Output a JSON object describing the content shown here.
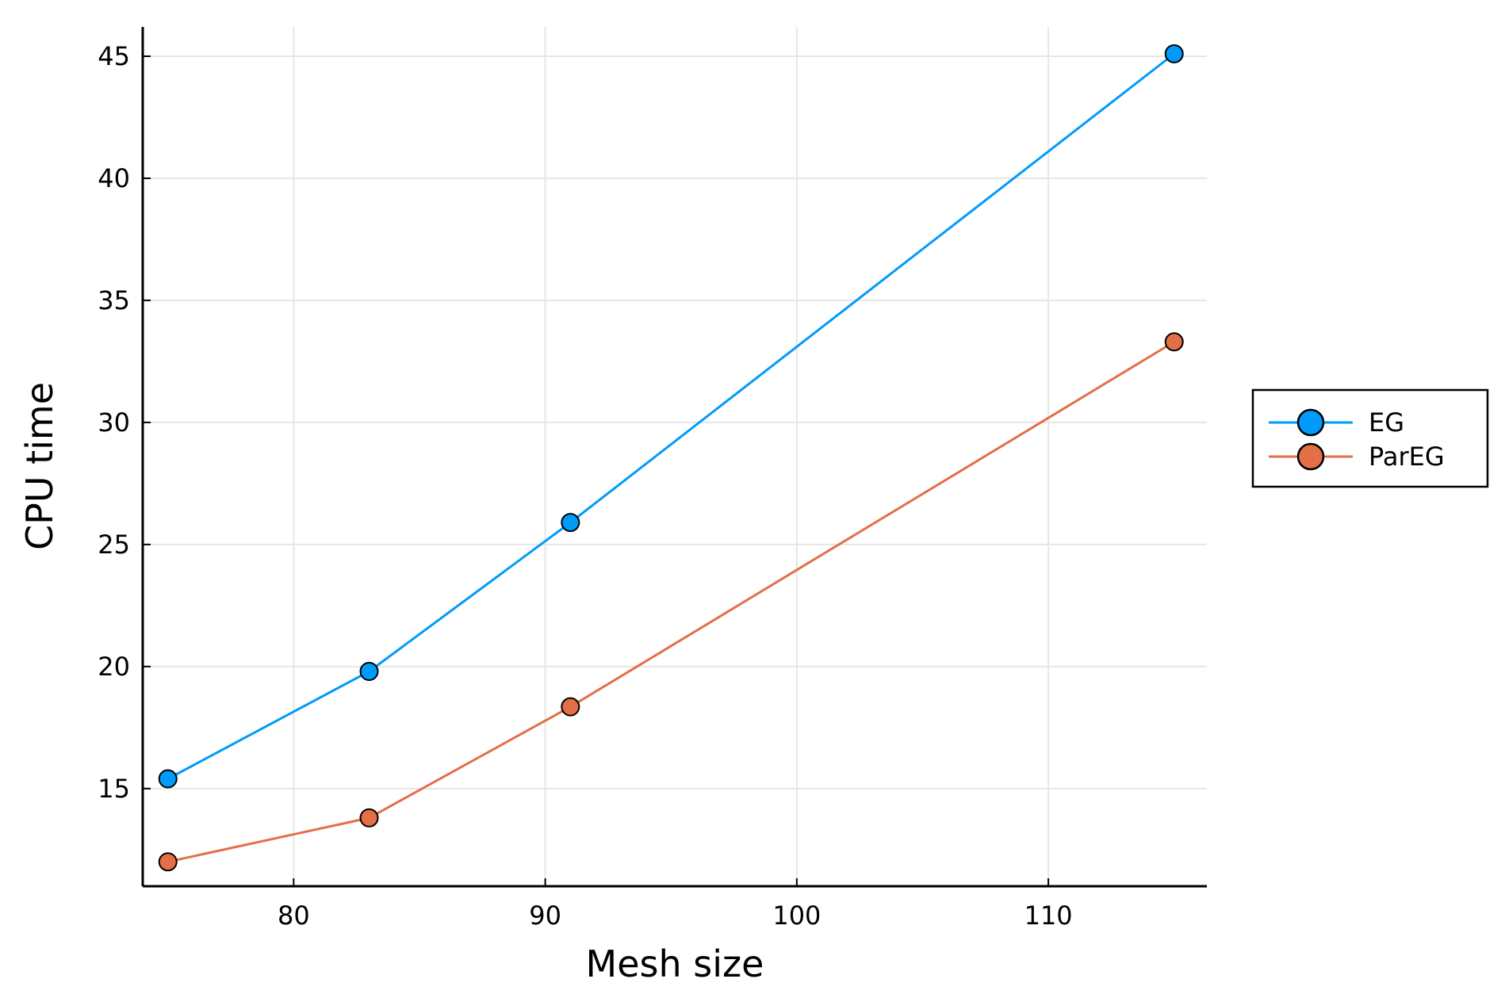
{
  "chart_data": {
    "type": "line",
    "xlabel": "Mesh size",
    "ylabel": "CPU time",
    "xlim": [
      74,
      116.3
    ],
    "ylim": [
      11,
      46.2
    ],
    "xticks": [
      80,
      90,
      100,
      110
    ],
    "yticks": [
      15,
      20,
      25,
      30,
      35,
      40,
      45
    ],
    "grid": true,
    "legend_position": "outer-right",
    "x": [
      75,
      83,
      91,
      115
    ],
    "series": [
      {
        "name": "EG",
        "color": "#009AFA",
        "values": [
          15.4,
          19.8,
          25.9,
          45.1
        ]
      },
      {
        "name": "ParEG",
        "color": "#E26F46",
        "values": [
          12.0,
          13.8,
          18.35,
          33.3
        ]
      }
    ]
  }
}
